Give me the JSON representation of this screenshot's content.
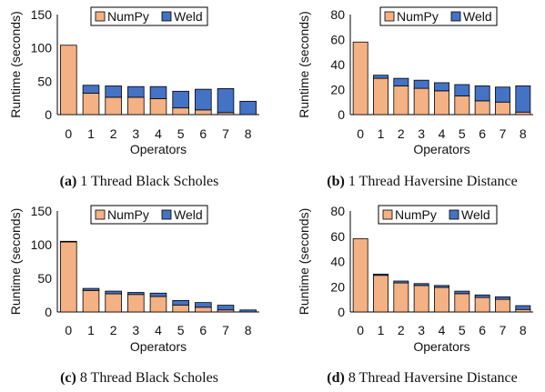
{
  "colors": {
    "numpy": "#f4b183",
    "weld": "#4472c4",
    "edge": "#000000"
  },
  "chart_data": [
    {
      "type": "bar",
      "stacked": true,
      "caption_label": "(a)",
      "caption_text": "1 Thread Black Scholes",
      "xlabel": "Operators",
      "ylabel": "Runtime (seconds)",
      "categories": [
        "0",
        "1",
        "2",
        "3",
        "4",
        "5",
        "6",
        "7",
        "8"
      ],
      "ylim": [
        0,
        150
      ],
      "yticks": [
        "0",
        "50",
        "100",
        "150"
      ],
      "legend_position": "top-right",
      "series": [
        {
          "name": "NumPy",
          "values": [
            104,
            32,
            26,
            26,
            24,
            10,
            7,
            3,
            0
          ]
        },
        {
          "name": "Weld",
          "values": [
            0,
            12,
            17,
            16,
            18,
            25,
            31,
            36,
            20
          ]
        }
      ]
    },
    {
      "type": "bar",
      "stacked": true,
      "caption_label": "(b)",
      "caption_text": "1 Thread Haversine Distance",
      "xlabel": "Operators",
      "ylabel": "Runtime (seconds)",
      "categories": [
        "0",
        "1",
        "2",
        "3",
        "4",
        "5",
        "6",
        "7",
        "8"
      ],
      "ylim": [
        0,
        80
      ],
      "yticks": [
        "0",
        "20",
        "40",
        "60",
        "80"
      ],
      "legend_position": "top-right",
      "series": [
        {
          "name": "NumPy",
          "values": [
            58,
            29,
            23,
            21,
            19,
            15,
            11,
            10,
            2
          ]
        },
        {
          "name": "Weld",
          "values": [
            0,
            2.5,
            6,
            6.5,
            6.5,
            9,
            12,
            12,
            21
          ]
        }
      ]
    },
    {
      "type": "bar",
      "stacked": true,
      "caption_label": "(c)",
      "caption_text": "8 Thread Black Scholes",
      "xlabel": "Operators",
      "ylabel": "Runtime (seconds)",
      "categories": [
        "0",
        "1",
        "2",
        "3",
        "4",
        "5",
        "6",
        "7",
        "8"
      ],
      "ylim": [
        0,
        150
      ],
      "yticks": [
        "0",
        "50",
        "100",
        "150"
      ],
      "legend_position": "top-right",
      "series": [
        {
          "name": "NumPy",
          "values": [
            104,
            32,
            27,
            26,
            23,
            10,
            7,
            3,
            0
          ]
        },
        {
          "name": "Weld",
          "values": [
            1,
            3,
            4,
            3,
            5,
            7,
            7,
            7,
            3
          ]
        }
      ]
    },
    {
      "type": "bar",
      "stacked": true,
      "caption_label": "(d)",
      "caption_text": "8 Thread Haversine Distance",
      "xlabel": "Operators",
      "ylabel": "Runtime (seconds)",
      "categories": [
        "0",
        "1",
        "2",
        "3",
        "4",
        "5",
        "6",
        "7",
        "8"
      ],
      "ylim": [
        0,
        80
      ],
      "yticks": [
        "0",
        "20",
        "40",
        "60",
        "80"
      ],
      "legend_position": "top-right",
      "series": [
        {
          "name": "NumPy",
          "values": [
            58,
            29,
            23,
            21,
            19.5,
            14.5,
            11.5,
            10,
            2
          ]
        },
        {
          "name": "Weld",
          "values": [
            0,
            1,
            1.5,
            1.5,
            1.5,
            2,
            2,
            2,
            3
          ]
        }
      ]
    }
  ]
}
